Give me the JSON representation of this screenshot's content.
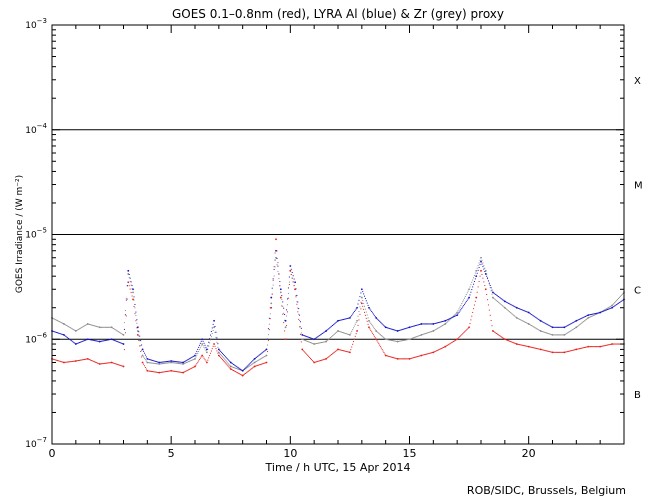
{
  "chart_data": {
    "type": "scatter",
    "title": "GOES 0.1–0.8nm (red), LYRA Al (blue) & Zr (grey) proxy",
    "xlabel": "Time / h UTC, 15 Apr 2014",
    "ylabel": "GOES Irradiance / (W m⁻²)",
    "xlim": [
      0,
      24
    ],
    "ylim": [
      1e-07,
      0.001
    ],
    "yscale": "log",
    "x_ticks": [
      0,
      5,
      10,
      15,
      20
    ],
    "x_tick_labels": [
      "0",
      "5",
      "10",
      "15",
      "20"
    ],
    "y_ticks": [
      1e-07,
      1e-06,
      1e-05,
      0.0001,
      0.001
    ],
    "y_tick_labels": [
      {
        "base": "10",
        "exp": "−7"
      },
      {
        "base": "10",
        "exp": "−6"
      },
      {
        "base": "10",
        "exp": "−5"
      },
      {
        "base": "10",
        "exp": "−4"
      },
      {
        "base": "10",
        "exp": "−3"
      }
    ],
    "reference_lines": [
      1e-06,
      1e-05,
      0.0001
    ],
    "flare_classes": [
      {
        "label": "X",
        "y": 0.0003
      },
      {
        "label": "M",
        "y": 3e-05
      },
      {
        "label": "C",
        "y": 3e-06
      },
      {
        "label": "B",
        "y": 3e-07
      }
    ],
    "grid": false,
    "legend": "none",
    "series": [
      {
        "color": "#e8201c",
        "x": [
          0,
          0.5,
          1,
          1.5,
          2,
          2.5,
          3,
          3.2,
          3.4,
          3.6,
          3.8,
          4,
          4.5,
          5,
          5.5,
          6,
          6.3,
          6.5,
          6.8,
          7,
          7.5,
          8,
          8.5,
          9,
          9.2,
          9.4,
          9.6,
          9.8,
          10,
          10.2,
          10.5,
          11,
          11.5,
          12,
          12.5,
          12.8,
          13,
          13.3,
          13.6,
          14,
          14.5,
          15,
          15.5,
          16,
          16.5,
          17,
          17.5,
          17.8,
          18,
          18.2,
          18.5,
          19,
          19.5,
          20,
          20.5,
          21,
          21.5,
          22,
          22.5,
          23,
          23.5,
          24
        ],
        "values": [
          6.5e-07,
          6e-07,
          6.2e-07,
          6.5e-07,
          5.8e-07,
          6e-07,
          5.5e-07,
          3.5e-06,
          2.4e-06,
          1.1e-06,
          6e-07,
          5e-07,
          4.8e-07,
          5e-07,
          4.8e-07,
          5.5e-07,
          7e-07,
          6e-07,
          9e-07,
          7e-07,
          5.2e-07,
          4.5e-07,
          5.5e-07,
          6e-07,
          2e-06,
          9e-06,
          2.5e-06,
          1e-06,
          4.5e-06,
          3e-06,
          8e-07,
          6e-07,
          6.5e-07,
          8e-07,
          7.5e-07,
          1.2e-06,
          2.2e-06,
          1.3e-06,
          1e-06,
          7e-07,
          6.5e-07,
          6.5e-07,
          7e-07,
          7.5e-07,
          8.5e-07,
          1e-06,
          1.3e-06,
          2.5e-06,
          4.5e-06,
          3e-06,
          1.2e-06,
          1e-06,
          9e-07,
          8.5e-07,
          8e-07,
          7.5e-07,
          7.5e-07,
          8e-07,
          8.5e-07,
          8.5e-07,
          9e-07,
          9e-07
        ]
      },
      {
        "color": "#1414c8",
        "x": [
          0,
          0.5,
          1,
          1.5,
          2,
          2.5,
          3,
          3.2,
          3.4,
          3.6,
          3.8,
          4,
          4.5,
          5,
          5.5,
          6,
          6.3,
          6.5,
          6.8,
          7,
          7.5,
          8,
          8.5,
          9,
          9.2,
          9.4,
          9.6,
          9.8,
          10,
          10.2,
          10.5,
          11,
          11.5,
          12,
          12.5,
          12.8,
          13,
          13.3,
          13.6,
          14,
          14.5,
          15,
          15.5,
          16,
          16.5,
          17,
          17.5,
          17.8,
          18,
          18.2,
          18.5,
          19,
          19.5,
          20,
          20.5,
          21,
          21.5,
          22,
          22.5,
          23,
          23.5,
          24
        ],
        "values": [
          1.2e-06,
          1.1e-06,
          9e-07,
          1e-06,
          9.5e-07,
          1e-06,
          9e-07,
          4.5e-06,
          3e-06,
          1.3e-06,
          8e-07,
          6.5e-07,
          6e-07,
          6.2e-07,
          6e-07,
          7e-07,
          1e-06,
          8e-07,
          1.5e-06,
          8e-07,
          6e-07,
          5e-07,
          6.5e-07,
          8e-07,
          2.5e-06,
          7e-06,
          3e-06,
          1.5e-06,
          5e-06,
          3.5e-06,
          1.1e-06,
          1e-06,
          1.2e-06,
          1.5e-06,
          1.6e-06,
          2e-06,
          3e-06,
          2e-06,
          1.6e-06,
          1.3e-06,
          1.2e-06,
          1.3e-06,
          1.4e-06,
          1.4e-06,
          1.5e-06,
          1.7e-06,
          2.5e-06,
          4e-06,
          5.5e-06,
          4.2e-06,
          2.8e-06,
          2.3e-06,
          2e-06,
          1.8e-06,
          1.5e-06,
          1.3e-06,
          1.3e-06,
          1.5e-06,
          1.7e-06,
          1.8e-06,
          2e-06,
          2.4e-06
        ]
      },
      {
        "color": "#8c8c8c",
        "x": [
          0,
          0.5,
          1,
          1.5,
          2,
          2.5,
          3,
          3.2,
          3.4,
          3.6,
          3.8,
          4,
          4.5,
          5,
          5.5,
          6,
          6.3,
          6.5,
          6.8,
          7,
          7.5,
          8,
          8.5,
          9,
          9.2,
          9.4,
          9.6,
          9.8,
          10,
          10.2,
          10.5,
          11,
          11.5,
          12,
          12.5,
          12.8,
          13,
          13.3,
          13.6,
          14,
          14.5,
          15,
          15.5,
          16,
          16.5,
          17,
          17.5,
          17.8,
          18,
          18.2,
          18.5,
          19,
          19.5,
          20,
          20.5,
          21,
          21.5,
          22,
          22.5,
          23,
          23.5,
          24
        ],
        "values": [
          1.6e-06,
          1.4e-06,
          1.2e-06,
          1.4e-06,
          1.3e-06,
          1.3e-06,
          1.1e-06,
          4.2e-06,
          2.8e-06,
          1.2e-06,
          7e-07,
          6e-07,
          5.8e-07,
          6e-07,
          5.8e-07,
          6.5e-07,
          9e-07,
          7.5e-07,
          1.3e-06,
          7.5e-07,
          5.5e-07,
          5e-07,
          6e-07,
          7e-07,
          2.2e-06,
          6e-06,
          2.8e-06,
          1.3e-06,
          4.5e-06,
          3e-06,
          1e-06,
          9e-07,
          9.5e-07,
          1.2e-06,
          1.1e-06,
          1.5e-06,
          2.5e-06,
          1.5e-06,
          1.2e-06,
          1e-06,
          9.5e-07,
          1e-06,
          1.1e-06,
          1.2e-06,
          1.4e-06,
          1.8e-06,
          3e-06,
          4.5e-06,
          6e-06,
          4.5e-06,
          2.5e-06,
          2e-06,
          1.6e-06,
          1.4e-06,
          1.2e-06,
          1.1e-06,
          1.1e-06,
          1.3e-06,
          1.6e-06,
          1.8e-06,
          2.1e-06,
          2.8e-06
        ]
      }
    ]
  },
  "credit": "ROB/SIDC, Brussels, Belgium"
}
